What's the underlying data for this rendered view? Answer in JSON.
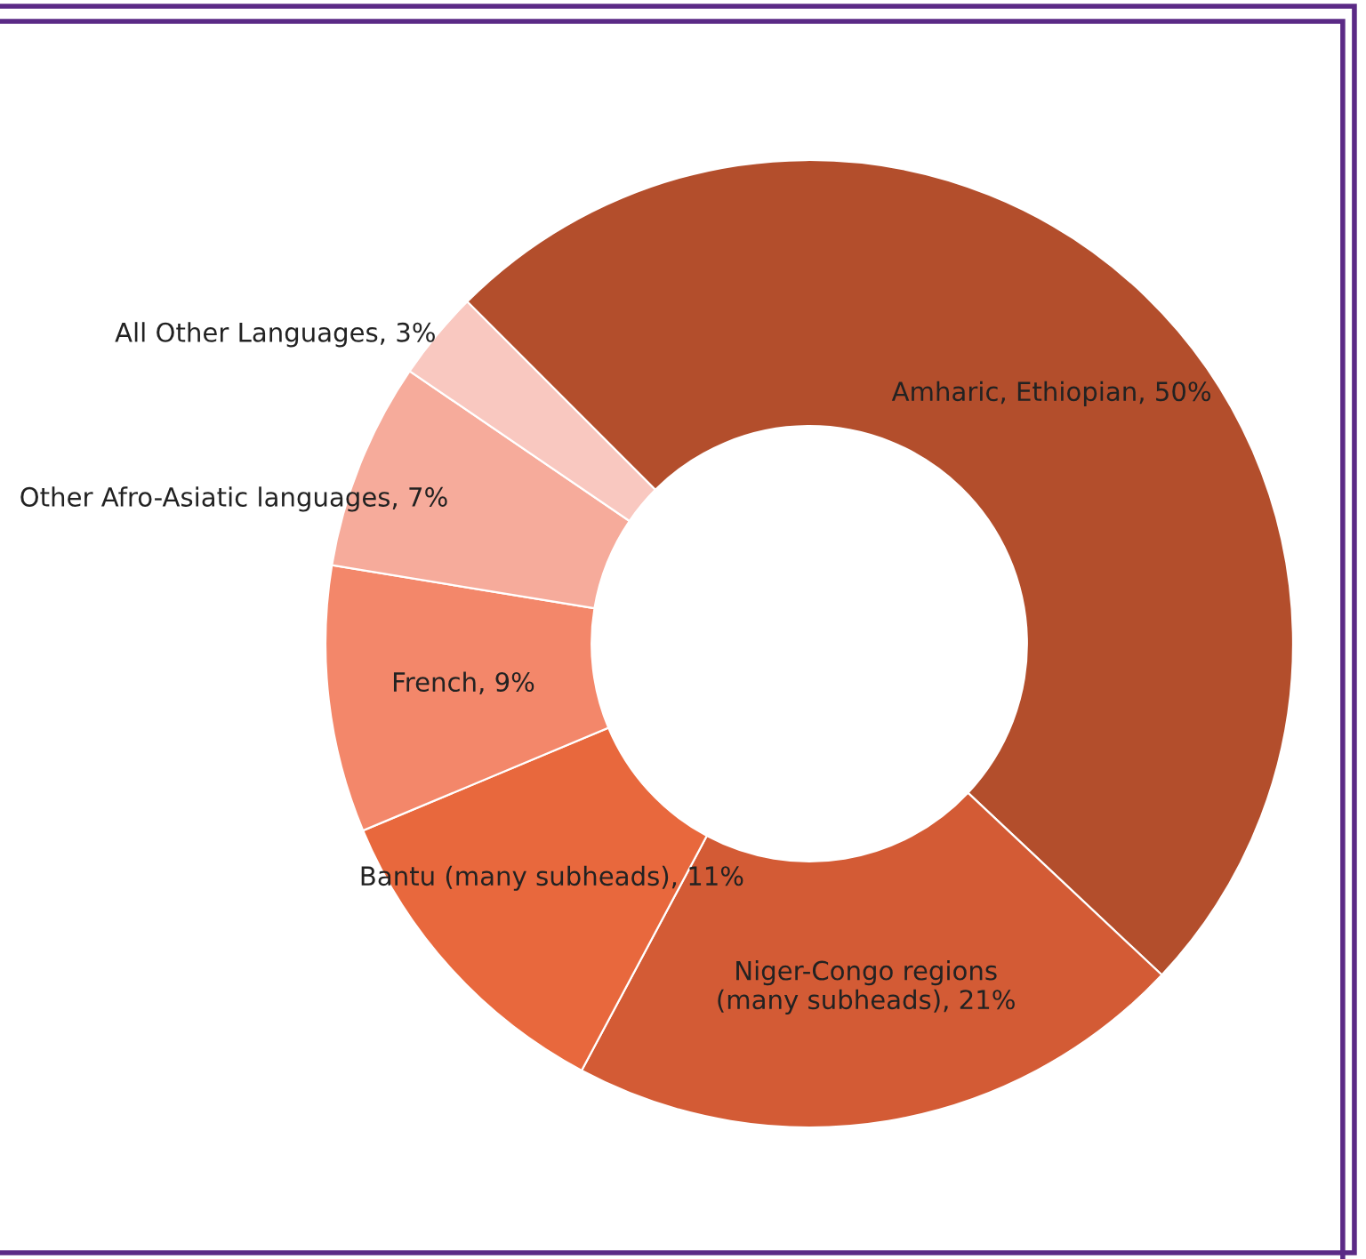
{
  "chart_data": {
    "type": "donut",
    "categories": [
      "Amharic, Ethiopian",
      "Niger-Congo regions (many subheads)",
      "Bantu (many subheads)",
      "French",
      "Other Afro-Asiatic languages",
      "All Other Languages"
    ],
    "values": [
      50,
      21,
      11,
      9,
      7,
      3
    ],
    "value_labels": [
      "50%",
      "21%",
      "11%",
      "9%",
      "7%",
      "3%"
    ],
    "colors": [
      "#b34e2c",
      "#d35b35",
      "#e8683d",
      "#f3876a",
      "#f6ab9b",
      "#f9c8c0"
    ],
    "legend": false
  }
}
